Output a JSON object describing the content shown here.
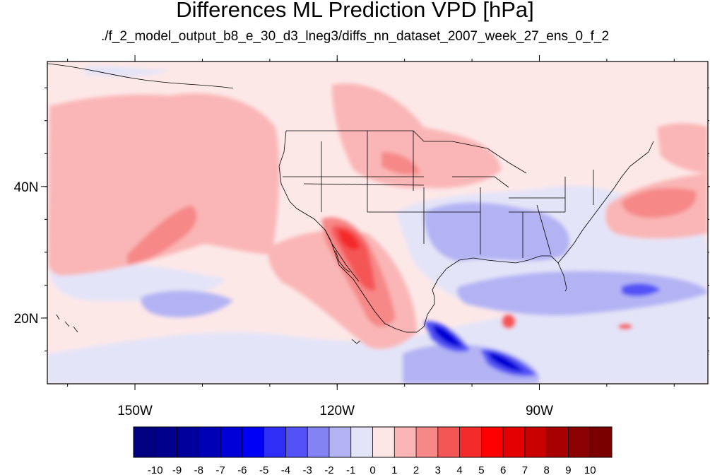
{
  "title": "Differences ML Prediction VPD [hPa]",
  "subtitle": "./f_2_model_output_b8_e_30_d3_lneg3/diffs_nn_dataset_2007_week_27_ens_0_f_2",
  "map": {
    "lon_range": [
      -163,
      -65
    ],
    "lat_range": [
      10,
      59
    ],
    "lon_ticks": [
      {
        "value": -150,
        "label": "150W"
      },
      {
        "value": -120,
        "label": "120W"
      },
      {
        "value": -90,
        "label": "90W"
      }
    ],
    "lat_ticks": [
      {
        "value": 40,
        "label": "40N"
      },
      {
        "value": 20,
        "label": "20N"
      }
    ]
  },
  "colorbar": {
    "labels": [
      "-10",
      "-9",
      "-8",
      "-7",
      "-6",
      "-5",
      "-4",
      "-3",
      "-2",
      "-1",
      "0",
      "1",
      "2",
      "3",
      "4",
      "5",
      "6",
      "7",
      "8",
      "9",
      "10"
    ],
    "colors": [
      "#000080",
      "#00008d",
      "#00009d",
      "#0000b7",
      "#0000d6",
      "#0000f5",
      "#2e2ef7",
      "#5252f6",
      "#8383f4",
      "#b3b3f4",
      "#e4e4f8",
      "#fde6e6",
      "#fab6b6",
      "#f68888",
      "#f45656",
      "#f42b2b",
      "#ff0000",
      "#e50000",
      "#c80000",
      "#a80000",
      "#8b0000",
      "#7a0000"
    ]
  }
}
